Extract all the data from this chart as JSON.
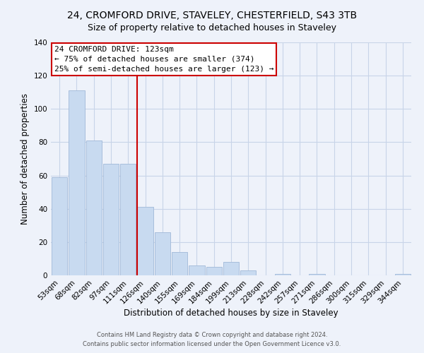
{
  "title": "24, CROMFORD DRIVE, STAVELEY, CHESTERFIELD, S43 3TB",
  "subtitle": "Size of property relative to detached houses in Staveley",
  "xlabel": "Distribution of detached houses by size in Staveley",
  "ylabel": "Number of detached properties",
  "bar_labels": [
    "53sqm",
    "68sqm",
    "82sqm",
    "97sqm",
    "111sqm",
    "126sqm",
    "140sqm",
    "155sqm",
    "169sqm",
    "184sqm",
    "199sqm",
    "213sqm",
    "228sqm",
    "242sqm",
    "257sqm",
    "271sqm",
    "286sqm",
    "300sqm",
    "315sqm",
    "329sqm",
    "344sqm"
  ],
  "bar_heights": [
    59,
    111,
    81,
    67,
    67,
    41,
    26,
    14,
    6,
    5,
    8,
    3,
    0,
    1,
    0,
    1,
    0,
    0,
    0,
    0,
    1
  ],
  "bar_color": "#c8daf0",
  "bar_edge_color": "#a0b8d8",
  "vline_color": "#cc0000",
  "vline_x_index": 5,
  "annotation_title": "24 CROMFORD DRIVE: 123sqm",
  "annotation_line1": "← 75% of detached houses are smaller (374)",
  "annotation_line2": "25% of semi-detached houses are larger (123) →",
  "annotation_box_facecolor": "#ffffff",
  "annotation_box_edgecolor": "#cc0000",
  "ylim": [
    0,
    140
  ],
  "yticks": [
    0,
    20,
    40,
    60,
    80,
    100,
    120,
    140
  ],
  "footer1": "Contains HM Land Registry data © Crown copyright and database right 2024.",
  "footer2": "Contains public sector information licensed under the Open Government Licence v3.0.",
  "background_color": "#eef2fa",
  "grid_color": "#c8d4e8",
  "title_fontsize": 10,
  "subtitle_fontsize": 9,
  "axis_label_fontsize": 8.5,
  "tick_fontsize": 7.5,
  "annotation_fontsize": 8,
  "footer_fontsize": 6
}
